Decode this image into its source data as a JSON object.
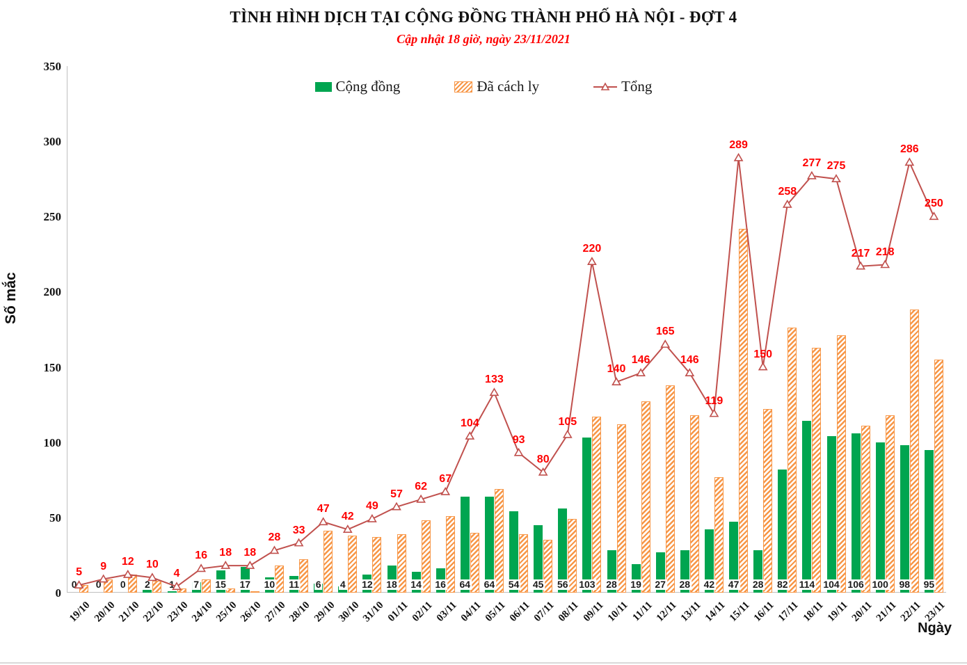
{
  "title": "TÌNH HÌNH DỊCH TẠI CỘNG ĐỒNG THÀNH PHỐ HÀ NỘI - ĐỢT 4",
  "subtitle": "Cập nhật 18 giờ, ngày 23/11/2021",
  "legend": {
    "community": "Cộng đồng",
    "quarantined": "Đã cách ly",
    "total": "Tổng"
  },
  "axes": {
    "y_label": "Số mắc",
    "x_label": "Ngày",
    "y_ticks": [
      0,
      50,
      100,
      150,
      200,
      250,
      300,
      350
    ],
    "y_max": 350
  },
  "colors": {
    "green": "#00A550",
    "orange": "#F79646",
    "line": "#C0504D",
    "red_label": "#FE0000",
    "axis_gray": "#BFBFBF"
  },
  "chart_data": {
    "type": "bar",
    "title": "TÌNH HÌNH DỊCH TẠI CỘNG ĐỒNG THÀNH PHỐ HÀ NỘI - ĐỢT 4",
    "subtitle": "Cập nhật 18 giờ, ngày 23/11/2021",
    "xlabel": "Ngày",
    "ylabel": "Số mắc",
    "ylim": [
      0,
      350
    ],
    "grid": false,
    "legend_position": "top",
    "categories": [
      "19/10",
      "20/10",
      "21/10",
      "22/10",
      "23/10",
      "24/10",
      "25/10",
      "26/10",
      "27/10",
      "28/10",
      "29/10",
      "30/10",
      "31/10",
      "01/11",
      "02/11",
      "03/11",
      "04/11",
      "05/11",
      "06/11",
      "07/11",
      "08/11",
      "09/11",
      "10/11",
      "11/11",
      "12/11",
      "13/11",
      "14/11",
      "15/11",
      "16/11",
      "17/11",
      "18/11",
      "19/11",
      "20/11",
      "21/11",
      "22/11",
      "23/11"
    ],
    "series": [
      {
        "name": "Cộng đồng",
        "kind": "bar",
        "color": "#00A550",
        "data_labels": "base-black",
        "values": [
          0,
          0,
          0,
          2,
          1,
          7,
          15,
          17,
          10,
          11,
          6,
          4,
          12,
          18,
          14,
          16,
          64,
          64,
          54,
          45,
          56,
          103,
          28,
          19,
          27,
          28,
          42,
          47,
          28,
          82,
          114,
          104,
          106,
          100,
          98,
          95
        ]
      },
      {
        "name": "Đã cách ly",
        "kind": "bar",
        "color": "#F79646",
        "hatch": true,
        "data_labels": "none",
        "values": [
          5,
          9,
          12,
          8,
          3,
          9,
          3,
          1,
          18,
          22,
          41,
          38,
          37,
          39,
          48,
          51,
          40,
          69,
          39,
          35,
          49,
          117,
          112,
          127,
          138,
          118,
          77,
          242,
          122,
          176,
          163,
          171,
          111,
          118,
          188,
          155
        ]
      },
      {
        "name": "Tổng",
        "kind": "line",
        "color": "#C0504D",
        "marker": "open-triangle",
        "data_labels": "above-red",
        "values": [
          5,
          9,
          12,
          10,
          4,
          16,
          18,
          18,
          28,
          33,
          47,
          42,
          49,
          57,
          62,
          67,
          104,
          133,
          93,
          80,
          105,
          220,
          140,
          146,
          165,
          146,
          119,
          289,
          150,
          258,
          277,
          275,
          217,
          218,
          286,
          250
        ]
      }
    ]
  }
}
